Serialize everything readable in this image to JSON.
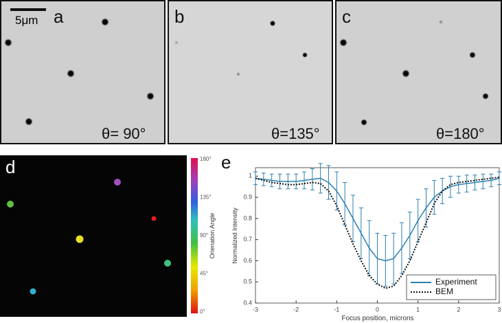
{
  "panels": {
    "a": {
      "letter": "a",
      "angle": "θ= 90°",
      "scale": "5μm"
    },
    "b": {
      "letter": "b",
      "angle": "θ=135°"
    },
    "c": {
      "letter": "c",
      "angle": "θ=180°"
    },
    "d": {
      "letter": "d",
      "colorbar_label": "Orienation Angle",
      "colorbar_ticks": [
        "0°",
        "45°",
        "90°",
        "135°",
        "180°"
      ]
    }
  },
  "chart_data": {
    "type": "line",
    "letter": "e",
    "xlabel": "Focus position, microns",
    "ylabel": "Normalized Intensity",
    "x": [
      -3,
      -2.8,
      -2.6,
      -2.4,
      -2.2,
      -2,
      -1.8,
      -1.6,
      -1.4,
      -1.2,
      -1,
      -0.8,
      -0.6,
      -0.4,
      -0.2,
      0,
      0.2,
      0.4,
      0.6,
      0.8,
      1,
      1.2,
      1.4,
      1.6,
      1.8,
      2,
      2.2,
      2.4,
      2.6,
      2.8,
      3
    ],
    "series": [
      {
        "name": "Experiment",
        "color": "#2a7fb0",
        "style": "solid",
        "values": [
          0.99,
          0.985,
          0.98,
          0.975,
          0.975,
          0.975,
          0.98,
          0.985,
          0.99,
          0.97,
          0.93,
          0.87,
          0.8,
          0.73,
          0.66,
          0.61,
          0.6,
          0.61,
          0.66,
          0.72,
          0.79,
          0.85,
          0.9,
          0.93,
          0.95,
          0.96,
          0.965,
          0.97,
          0.975,
          0.98,
          0.99
        ],
        "errors": [
          0.03,
          0.03,
          0.03,
          0.035,
          0.035,
          0.035,
          0.04,
          0.05,
          0.07,
          0.08,
          0.09,
          0.1,
          0.11,
          0.12,
          0.13,
          0.12,
          0.12,
          0.12,
          0.12,
          0.11,
          0.1,
          0.09,
          0.08,
          0.06,
          0.05,
          0.04,
          0.04,
          0.035,
          0.035,
          0.03,
          0.03
        ]
      },
      {
        "name": "BEM",
        "color": "#111111",
        "style": "dotted",
        "values": [
          0.99,
          0.98,
          0.97,
          0.965,
          0.96,
          0.96,
          0.965,
          0.97,
          0.965,
          0.93,
          0.86,
          0.77,
          0.68,
          0.6,
          0.53,
          0.49,
          0.47,
          0.48,
          0.53,
          0.6,
          0.69,
          0.78,
          0.87,
          0.93,
          0.96,
          0.97,
          0.975,
          0.98,
          0.985,
          0.99,
          0.995
        ]
      }
    ],
    "xlim": [
      -3,
      3
    ],
    "ylim": [
      0.4,
      1.04
    ],
    "xticks": [
      -3,
      -2,
      -1,
      0,
      1,
      2,
      3
    ],
    "yticks": [
      0.4,
      0.5,
      0.6,
      0.7,
      0.8,
      0.9,
      1
    ],
    "legend": "lower right"
  }
}
